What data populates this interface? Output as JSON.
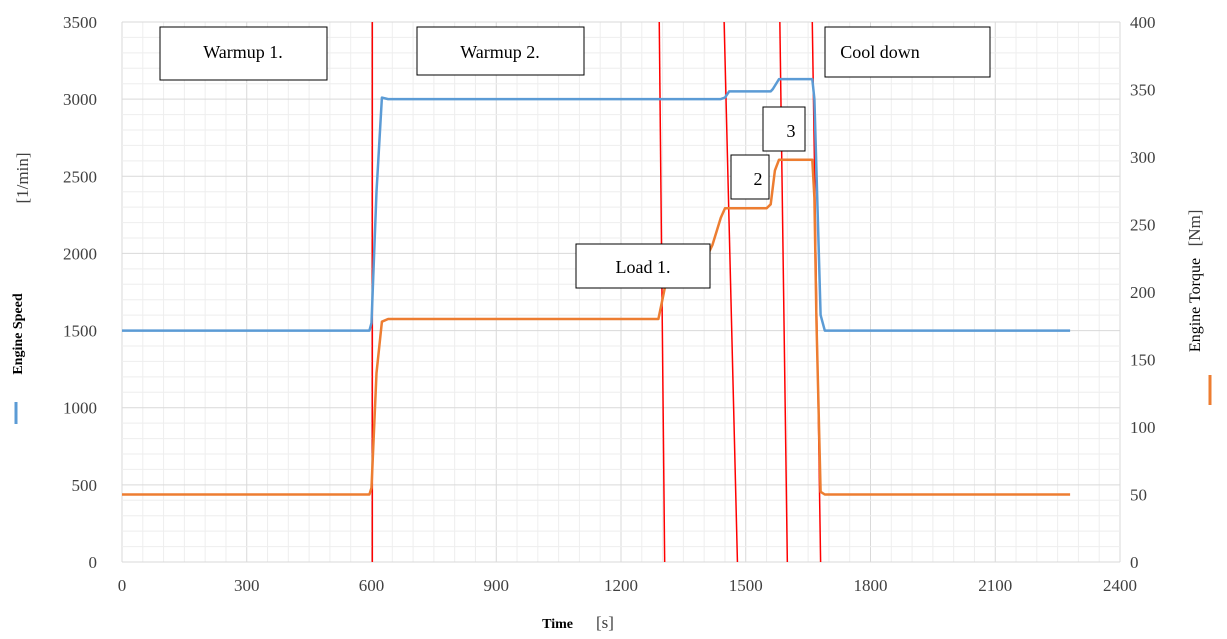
{
  "chart_data": {
    "type": "line",
    "x_axis": {
      "name": "Time",
      "unit": "[s]",
      "range": [
        0,
        2400
      ],
      "ticks": [
        "0",
        "300",
        "600",
        "900",
        "1200",
        "1500",
        "1800",
        "2100",
        "2400"
      ]
    },
    "y_left": {
      "name": "Engine Speed",
      "unit": "[1/min]",
      "range": [
        0,
        3500
      ],
      "ticks": [
        "0",
        "500",
        "1000",
        "1500",
        "2000",
        "2500",
        "3000",
        "3500"
      ]
    },
    "y_right": {
      "name": "Engine Torque",
      "unit": "[Nm]",
      "range": [
        0,
        400
      ],
      "ticks": [
        "0",
        "50",
        "100",
        "150",
        "200",
        "250",
        "300",
        "350",
        "400"
      ]
    },
    "grid": true,
    "series": [
      {
        "name": "Engine Speed",
        "axis": "left",
        "color": "#5b9bd5",
        "x": [
          0,
          595,
          600,
          612,
          625,
          640,
          1440,
          1450,
          1460,
          1560,
          1565,
          1580,
          1660,
          1665,
          1680,
          1690,
          2280
        ],
        "y": [
          1500,
          1500,
          1550,
          2400,
          3010,
          3000,
          3000,
          3010,
          3050,
          3050,
          3065,
          3130,
          3130,
          3000,
          1600,
          1500,
          1500
        ]
      },
      {
        "name": "Engine Torque",
        "axis": "right",
        "color": "#ed7d31",
        "x": [
          0,
          595,
          600,
          612,
          625,
          640,
          1280,
          1290,
          1300,
          1310,
          1320,
          1390,
          1400,
          1420,
          1440,
          1450,
          1460,
          1470,
          1550,
          1560,
          1570,
          1580,
          1590,
          1660,
          1665,
          1670,
          1680,
          1690,
          2280
        ],
        "y": [
          50,
          50,
          55,
          140,
          178,
          180,
          180,
          180,
          195,
          210,
          220,
          220,
          222,
          235,
          255,
          262,
          262,
          262,
          262,
          265,
          290,
          298,
          298,
          298,
          270,
          180,
          52,
          50,
          50
        ]
      }
    ],
    "phase_lines": {
      "color": "#ff0000",
      "lines": [
        {
          "x_top": 602,
          "x_bottom": 602,
          "y_top": 3500,
          "y_bottom": 0
        },
        {
          "x_top": 1292,
          "x_bottom": 1305,
          "y_top": 3500,
          "y_bottom": 0
        },
        {
          "x_top": 1448,
          "x_bottom": 1480,
          "y_top": 3500,
          "y_bottom": 0
        },
        {
          "x_top": 1582,
          "x_bottom": 1600,
          "y_top": 3500,
          "y_bottom": 0
        },
        {
          "x_top": 1660,
          "x_bottom": 1680,
          "y_top": 3500,
          "y_bottom": 0
        }
      ]
    },
    "annotations": [
      "Warmup 1.",
      "Warmup 2.",
      "Cool down",
      "Load 1.",
      "2",
      "3"
    ]
  }
}
